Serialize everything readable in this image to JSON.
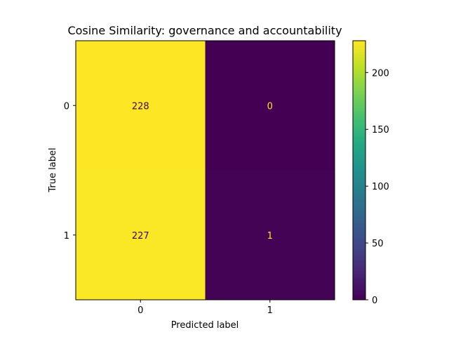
{
  "chart_data": {
    "type": "heatmap",
    "title": "Cosine Similarity: governance and accountability",
    "xlabel": "Predicted label",
    "ylabel": "True label",
    "x_categories": [
      "0",
      "1"
    ],
    "y_categories": [
      "0",
      "1"
    ],
    "matrix": [
      [
        228,
        0
      ],
      [
        227,
        1
      ]
    ],
    "colormap": "viridis",
    "colorbar": {
      "min": 0,
      "max": 228,
      "ticks": [
        0,
        50,
        100,
        150,
        200
      ]
    },
    "grid": false
  }
}
